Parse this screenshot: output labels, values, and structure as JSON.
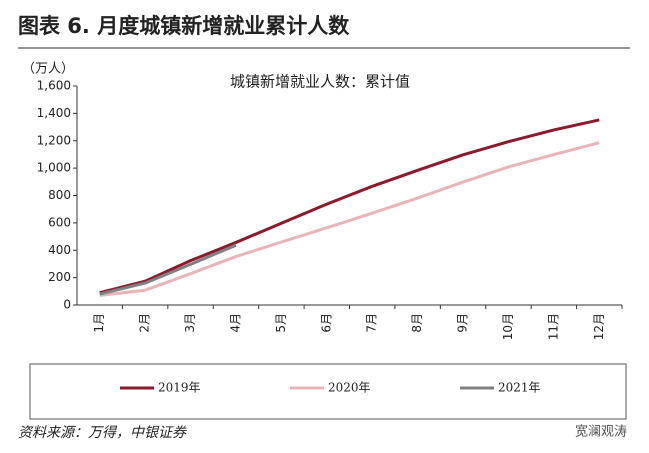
{
  "chart_data": {
    "type": "line",
    "title": "图表 6. 月度城镇新增就业累计人数",
    "subtitle": "城镇新增就业人数：累计值",
    "y_label": "（万人）",
    "source": "资料来源：万得，中银证券",
    "watermark": "宽澜观涛",
    "categories": [
      "1月",
      "2月",
      "3月",
      "4月",
      "5月",
      "6月",
      "7月",
      "8月",
      "9月",
      "10月",
      "11月",
      "12月"
    ],
    "series": [
      {
        "name": "2019年",
        "color": "#8b1a2b",
        "values": [
          90,
          174,
          324,
          457,
          597,
          737,
          867,
          984,
          1097,
          1193,
          1279,
          1352
        ]
      },
      {
        "name": "2020年",
        "color": "#e8b4b8",
        "values": [
          70,
          108,
          229,
          354,
          460,
          564,
          671,
          781,
          898,
          1009,
          1099,
          1186
        ]
      },
      {
        "name": "2021年",
        "color": "#808080",
        "values": [
          80,
          160,
          297,
          437,
          null,
          null,
          null,
          null,
          null,
          null,
          null,
          null
        ]
      }
    ],
    "ylim": [
      0,
      1600
    ],
    "yticks": [
      0,
      200,
      400,
      600,
      800,
      {
        "value": 1000,
        "label": "1,000"
      },
      {
        "value": 1200,
        "label": "1,200"
      },
      {
        "value": 1400,
        "label": "1,400"
      },
      {
        "value": 1600,
        "label": "1,600"
      }
    ],
    "grid": false,
    "legend": "bottom"
  }
}
